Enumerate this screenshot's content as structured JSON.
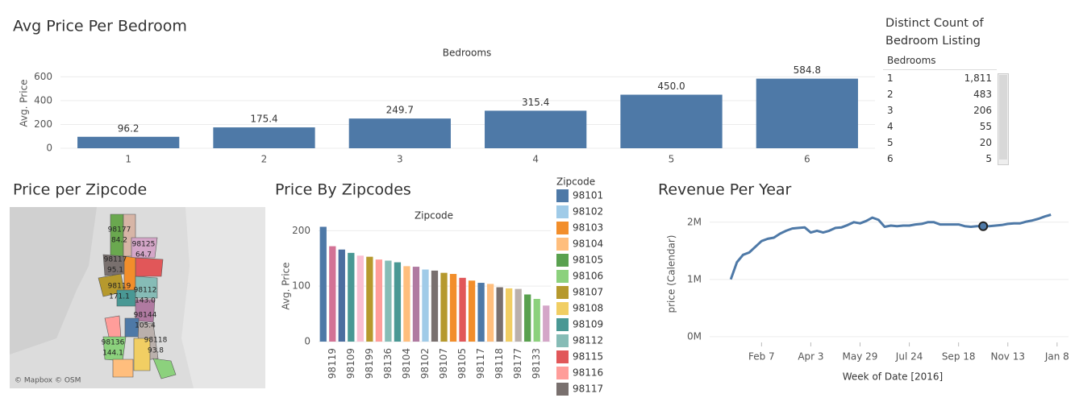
{
  "chart_data": [
    {
      "type": "bar",
      "title": "Avg Price Per Bedroom",
      "x_label": "Bedrooms",
      "y_label": "Avg. Price",
      "categories": [
        "1",
        "2",
        "3",
        "4",
        "5",
        "6"
      ],
      "values": [
        96.2,
        175.4,
        249.7,
        315.4,
        450.0,
        584.8
      ],
      "value_labels": [
        "96.2",
        "175.4",
        "249.7",
        "315.4",
        "450.0",
        "584.8"
      ],
      "color": "#4e79a7",
      "ylim": [
        0,
        650
      ],
      "yticks": [
        0,
        200,
        400,
        600
      ],
      "grid": true
    },
    {
      "type": "bar",
      "title": "Price By Zipcodes",
      "x_label": "Zipcode",
      "y_label": "Avg. Price",
      "categories": [
        null,
        "98119",
        null,
        "98109",
        null,
        "98199",
        null,
        "98136",
        null,
        "98104",
        null,
        "98102",
        null,
        "98107",
        null,
        "98105",
        null,
        "98117",
        null,
        "98118",
        null,
        "98177",
        null,
        "98133",
        null
      ],
      "values": [
        207,
        172,
        166,
        160,
        155,
        153,
        148,
        146,
        143,
        136,
        135,
        130,
        128,
        124,
        122,
        115,
        110,
        106,
        104,
        98,
        96,
        95,
        85,
        77,
        65
      ],
      "colors": [
        "#4e79a7",
        "#d37295",
        "#4b6ea0",
        "#499894",
        "#fabfd2",
        "#b6992d",
        "#ff9d9a",
        "#86bcb6",
        "#499894",
        "#ffbe7d",
        "#b07aa1",
        "#a0cbe8",
        "#79706e",
        "#b6992d",
        "#f28e2b",
        "#e15759",
        "#f28e2b",
        "#4e79a7",
        "#ffbe7d",
        "#79706e",
        "#f1ce63",
        "#bab0ac",
        "#59a14f",
        "#8cd17d",
        "#d4a6c8"
      ],
      "ylim": [
        0,
        215
      ],
      "yticks": [
        0,
        100,
        200
      ],
      "grid": true,
      "legend_title": "Zipcode",
      "legend": [
        {
          "name": "98101",
          "color": "#4e79a7"
        },
        {
          "name": "98102",
          "color": "#a0cbe8"
        },
        {
          "name": "98103",
          "color": "#f28e2b"
        },
        {
          "name": "98104",
          "color": "#ffbe7d"
        },
        {
          "name": "98105",
          "color": "#59a14f"
        },
        {
          "name": "98106",
          "color": "#8cd17d"
        },
        {
          "name": "98107",
          "color": "#b6992d"
        },
        {
          "name": "98108",
          "color": "#f1ce63"
        },
        {
          "name": "98109",
          "color": "#499894"
        },
        {
          "name": "98112",
          "color": "#86bcb6"
        },
        {
          "name": "98115",
          "color": "#e15759"
        },
        {
          "name": "98116",
          "color": "#ff9d9a"
        },
        {
          "name": "98117",
          "color": "#79706e"
        }
      ]
    },
    {
      "type": "line",
      "title": "Revenue Per Year",
      "x_label": "Week of Date [2016]",
      "y_label": "price (Calendar)",
      "x": [
        "2016-01-03",
        "2016-01-10",
        "2016-01-17",
        "2016-01-24",
        "2016-01-31",
        "2016-02-07",
        "2016-02-14",
        "2016-02-21",
        "2016-02-28",
        "2016-03-06",
        "2016-03-13",
        "2016-03-20",
        "2016-03-27",
        "2016-04-03",
        "2016-04-10",
        "2016-04-17",
        "2016-04-24",
        "2016-05-01",
        "2016-05-08",
        "2016-05-15",
        "2016-05-22",
        "2016-05-29",
        "2016-06-05",
        "2016-06-12",
        "2016-06-19",
        "2016-06-26",
        "2016-07-03",
        "2016-07-10",
        "2016-07-17",
        "2016-07-24",
        "2016-07-31",
        "2016-08-07",
        "2016-08-14",
        "2016-08-21",
        "2016-08-28",
        "2016-09-04",
        "2016-09-11",
        "2016-09-18",
        "2016-09-25",
        "2016-10-02",
        "2016-10-09",
        "2016-10-16",
        "2016-10-23",
        "2016-10-30",
        "2016-11-06",
        "2016-11-13",
        "2016-11-20",
        "2016-11-27",
        "2016-12-04",
        "2016-12-11",
        "2016-12-18",
        "2016-12-25",
        "2017-01-01"
      ],
      "series": [
        {
          "name": "price (Calendar)",
          "color": "#4e79a7",
          "values": [
            1000000,
            1300000,
            1430000,
            1470000,
            1570000,
            1670000,
            1710000,
            1730000,
            1800000,
            1850000,
            1890000,
            1900000,
            1910000,
            1820000,
            1850000,
            1820000,
            1850000,
            1900000,
            1910000,
            1950000,
            2000000,
            1980000,
            2020000,
            2080000,
            2040000,
            1920000,
            1940000,
            1930000,
            1940000,
            1940000,
            1960000,
            1970000,
            2000000,
            2000000,
            1960000,
            1960000,
            1960000,
            1960000,
            1930000,
            1920000,
            1930000,
            1930000,
            1930000,
            1940000,
            1950000,
            1970000,
            1980000,
            1980000,
            2010000,
            2030000,
            2060000,
            2100000,
            2130000
          ]
        }
      ],
      "highlight_index": 41,
      "xlim": [
        "2015-12-10",
        "2017-01-21"
      ],
      "xticks": [
        {
          "value": "2016-02-07",
          "label": "Feb 7"
        },
        {
          "value": "2016-04-03",
          "label": "Apr 3"
        },
        {
          "value": "2016-05-29",
          "label": "May 29"
        },
        {
          "value": "2016-07-24",
          "label": "Jul 24"
        },
        {
          "value": "2016-09-18",
          "label": "Sep 18"
        },
        {
          "value": "2016-11-13",
          "label": "Nov 13"
        },
        {
          "value": "2017-01-08",
          "label": "Jan 8"
        }
      ],
      "ylim": [
        -100000,
        2250000
      ],
      "yticks": [
        {
          "value": 0,
          "label": "0M"
        },
        {
          "value": 1000000,
          "label": "1M"
        },
        {
          "value": 2000000,
          "label": "2M"
        }
      ],
      "grid": true
    }
  ],
  "table": {
    "title": "Distinct Count of Bedroom Listing",
    "header": "Bedrooms",
    "rows": [
      [
        "1",
        "1,811"
      ],
      [
        "2",
        "483"
      ],
      [
        "3",
        "206"
      ],
      [
        "4",
        "55"
      ],
      [
        "5",
        "20"
      ],
      [
        "6",
        "5"
      ]
    ]
  },
  "map": {
    "title": "Price per Zipcode",
    "attribution": "© Mapbox © OSM",
    "labels": [
      {
        "zipcode": "98177",
        "value": "84.2"
      },
      {
        "zipcode": "98125",
        "value": "64.7"
      },
      {
        "zipcode": "98117",
        "value": "95.1"
      },
      {
        "zipcode": "98119",
        "value": "171.1"
      },
      {
        "zipcode": "98112",
        "value": "143.0"
      },
      {
        "zipcode": "98144",
        "value": "105.4"
      },
      {
        "zipcode": "98136",
        "value": "144.1"
      },
      {
        "zipcode": "98118",
        "value": "93.8"
      }
    ]
  }
}
